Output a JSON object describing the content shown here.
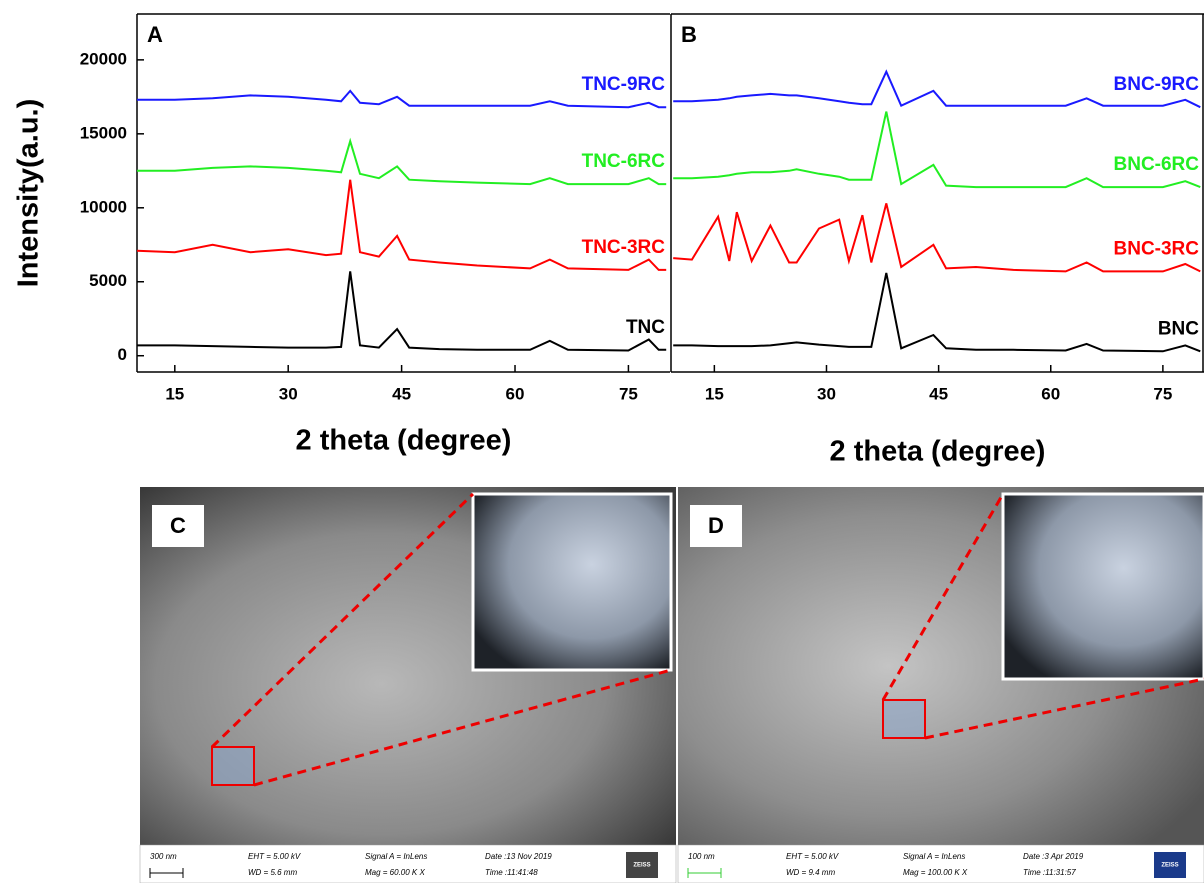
{
  "chart_data": [
    {
      "type": "line",
      "label": "A",
      "xlabel": "2 theta (degree)",
      "ylabel": "Intensity(a.u.)",
      "x": [
        10,
        15,
        20,
        25,
        30,
        35,
        37,
        38.2,
        39.5,
        42,
        44.4,
        46,
        50,
        55,
        62,
        64.6,
        67,
        75,
        77.7,
        79,
        80
      ],
      "xlim": [
        10,
        80.5
      ],
      "xticks": [
        15,
        30,
        45,
        60,
        75
      ],
      "ylim": [
        -1100,
        23100
      ],
      "yticks": [
        0,
        5000,
        10000,
        15000,
        20000
      ],
      "series": [
        {
          "name": "TNC",
          "color": "#000000",
          "values": [
            700,
            700,
            650,
            600,
            550,
            550,
            600,
            5700,
            700,
            550,
            1800,
            550,
            450,
            400,
            400,
            1000,
            400,
            350,
            1100,
            400,
            400
          ]
        },
        {
          "name": "TNC-3RC",
          "color": "#ff0000",
          "values": [
            7100,
            7000,
            7500,
            7000,
            7200,
            6800,
            6900,
            11900,
            7000,
            6700,
            8100,
            6500,
            6300,
            6100,
            5900,
            6500,
            5900,
            5800,
            6500,
            5800,
            5800
          ]
        },
        {
          "name": "TNC-6RC",
          "color": "#22ee22",
          "values": [
            12500,
            12500,
            12700,
            12800,
            12700,
            12500,
            12400,
            14500,
            12300,
            12000,
            12800,
            11900,
            11800,
            11700,
            11600,
            12000,
            11600,
            11600,
            12000,
            11600,
            11600
          ]
        },
        {
          "name": "TNC-9RC",
          "color": "#1a1aff",
          "values": [
            17300,
            17300,
            17400,
            17600,
            17500,
            17300,
            17200,
            17900,
            17100,
            17000,
            17500,
            16900,
            16900,
            16900,
            16900,
            17200,
            16900,
            16800,
            17100,
            16800,
            16800
          ]
        }
      ]
    },
    {
      "type": "line",
      "label": "B",
      "xlabel": "2 theta (degree)",
      "x": [
        9.5,
        12,
        15.5,
        17,
        18,
        20,
        22.5,
        25,
        26,
        29,
        31.7,
        33,
        34.8,
        36,
        38,
        40,
        44.3,
        46,
        50,
        55,
        62,
        64.8,
        67,
        75,
        78,
        80
      ],
      "xlim": [
        9.2,
        80.5
      ],
      "xticks": [
        15,
        30,
        45,
        60,
        75
      ],
      "ylim": [
        -1100,
        23100
      ],
      "series": [
        {
          "name": "BNC",
          "color": "#000000",
          "values": [
            700,
            700,
            650,
            650,
            650,
            650,
            700,
            850,
            900,
            750,
            650,
            600,
            600,
            600,
            5600,
            500,
            1400,
            500,
            400,
            400,
            350,
            800,
            350,
            300,
            700,
            300
          ]
        },
        {
          "name": "BNC-3RC",
          "color": "#ff0000",
          "values": [
            6600,
            6500,
            9400,
            6400,
            9700,
            6400,
            8800,
            6300,
            6300,
            8600,
            9200,
            6400,
            9500,
            6300,
            10300,
            6000,
            7500,
            5900,
            6000,
            5800,
            5700,
            6300,
            5700,
            5700,
            6200,
            5700
          ]
        },
        {
          "name": "BNC-6RC",
          "color": "#22ee22",
          "values": [
            12000,
            12000,
            12100,
            12200,
            12300,
            12400,
            12400,
            12500,
            12600,
            12300,
            12100,
            11900,
            11900,
            11900,
            16500,
            11600,
            12900,
            11500,
            11400,
            11400,
            11400,
            12000,
            11400,
            11400,
            11800,
            11400
          ]
        },
        {
          "name": "BNC-9RC",
          "color": "#1a1aff",
          "values": [
            17200,
            17200,
            17300,
            17400,
            17500,
            17600,
            17700,
            17600,
            17600,
            17400,
            17200,
            17100,
            17000,
            17000,
            19200,
            16900,
            17900,
            16900,
            16900,
            16900,
            16900,
            17400,
            16900,
            16900,
            17300,
            16800
          ]
        }
      ]
    }
  ],
  "sem_images": [
    {
      "label": "C",
      "scale_bar": "300 nm",
      "eht": "EHT =  5.00 kV",
      "wd": "WD = 5.6 mm",
      "signal": "Signal A = InLens",
      "mag": "Mag =  60.00 K X",
      "date": "Date :13 Nov 2019",
      "time": "Time :11:41:48",
      "brand": "ZEISS"
    },
    {
      "label": "D",
      "scale_bar": "100 nm",
      "eht": "EHT =  5.00 kV",
      "wd": "WD =  9.4 mm",
      "signal": "Signal A = InLens",
      "mag": "Mag =  100.00 K X",
      "date": "Date :3 Apr 2019",
      "time": "Time :11:31:57",
      "brand": "ZEISS"
    }
  ]
}
